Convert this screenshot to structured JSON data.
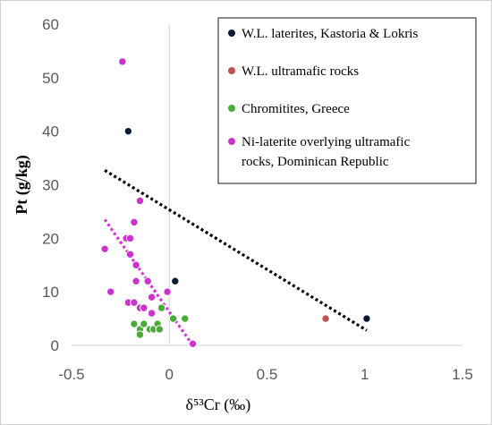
{
  "chart_data": {
    "type": "scatter",
    "xlabel": "δ⁵³Cr (‰)",
    "ylabel": "Pt (g/kg)",
    "xlim": [
      -0.5,
      1.5
    ],
    "ylim": [
      0,
      60
    ],
    "xticks": [
      -0.5,
      0,
      0.5,
      1,
      1.5
    ],
    "xtick_labels": [
      "-0.5",
      "0",
      "0.5",
      "1",
      "1.5"
    ],
    "yticks": [
      0,
      10,
      20,
      30,
      40,
      50,
      60
    ],
    "ytick_labels": [
      "0",
      "10",
      "20",
      "30",
      "40",
      "50",
      "60"
    ],
    "grid": false,
    "legend_position": "top-right",
    "series": [
      {
        "name": "W.L. laterites, Kastoria & Lokris",
        "color": "#0b1a33",
        "points": [
          [
            -0.21,
            40
          ],
          [
            0.03,
            12
          ],
          [
            1.01,
            5
          ]
        ]
      },
      {
        "name": "W.L. ultramafic rocks",
        "color": "#c0504d",
        "points": [
          [
            0.8,
            5
          ]
        ]
      },
      {
        "name": "Chromitites, Greece",
        "color": "#4aab3a",
        "points": [
          [
            -0.18,
            4
          ],
          [
            -0.15,
            3
          ],
          [
            -0.15,
            2
          ],
          [
            -0.13,
            4
          ],
          [
            -0.1,
            3
          ],
          [
            -0.08,
            3
          ],
          [
            -0.06,
            4
          ],
          [
            -0.05,
            3
          ],
          [
            -0.04,
            7
          ],
          [
            0.02,
            5
          ],
          [
            0.08,
            5
          ]
        ]
      },
      {
        "name": "Ni-laterite overlying ultramafic rocks, Dominican Republic",
        "color": "#cc33cc",
        "points": [
          [
            -0.24,
            53
          ],
          [
            -0.15,
            27
          ],
          [
            -0.18,
            23
          ],
          [
            -0.22,
            20
          ],
          [
            -0.2,
            20
          ],
          [
            -0.33,
            18
          ],
          [
            -0.2,
            17
          ],
          [
            -0.17,
            15
          ],
          [
            -0.11,
            12
          ],
          [
            -0.17,
            12
          ],
          [
            -0.3,
            10
          ],
          [
            -0.01,
            10
          ],
          [
            -0.09,
            9
          ],
          [
            -0.21,
            8
          ],
          [
            -0.18,
            8
          ],
          [
            -0.15,
            7
          ],
          [
            -0.13,
            7
          ],
          [
            -0.09,
            6
          ],
          [
            0.12,
            0.3
          ]
        ]
      }
    ],
    "trendlines": [
      {
        "series": "W.L. laterites, Kastoria & Lokris",
        "color": "#000000",
        "x": [
          -0.33,
          1.01
        ],
        "y": [
          32.7,
          2.8
        ]
      },
      {
        "series": "Ni-laterite overlying ultramafic rocks, Dominican Republic",
        "color": "#d633d6",
        "x": [
          -0.33,
          0.12
        ],
        "y": [
          23.5,
          0
        ]
      }
    ]
  }
}
